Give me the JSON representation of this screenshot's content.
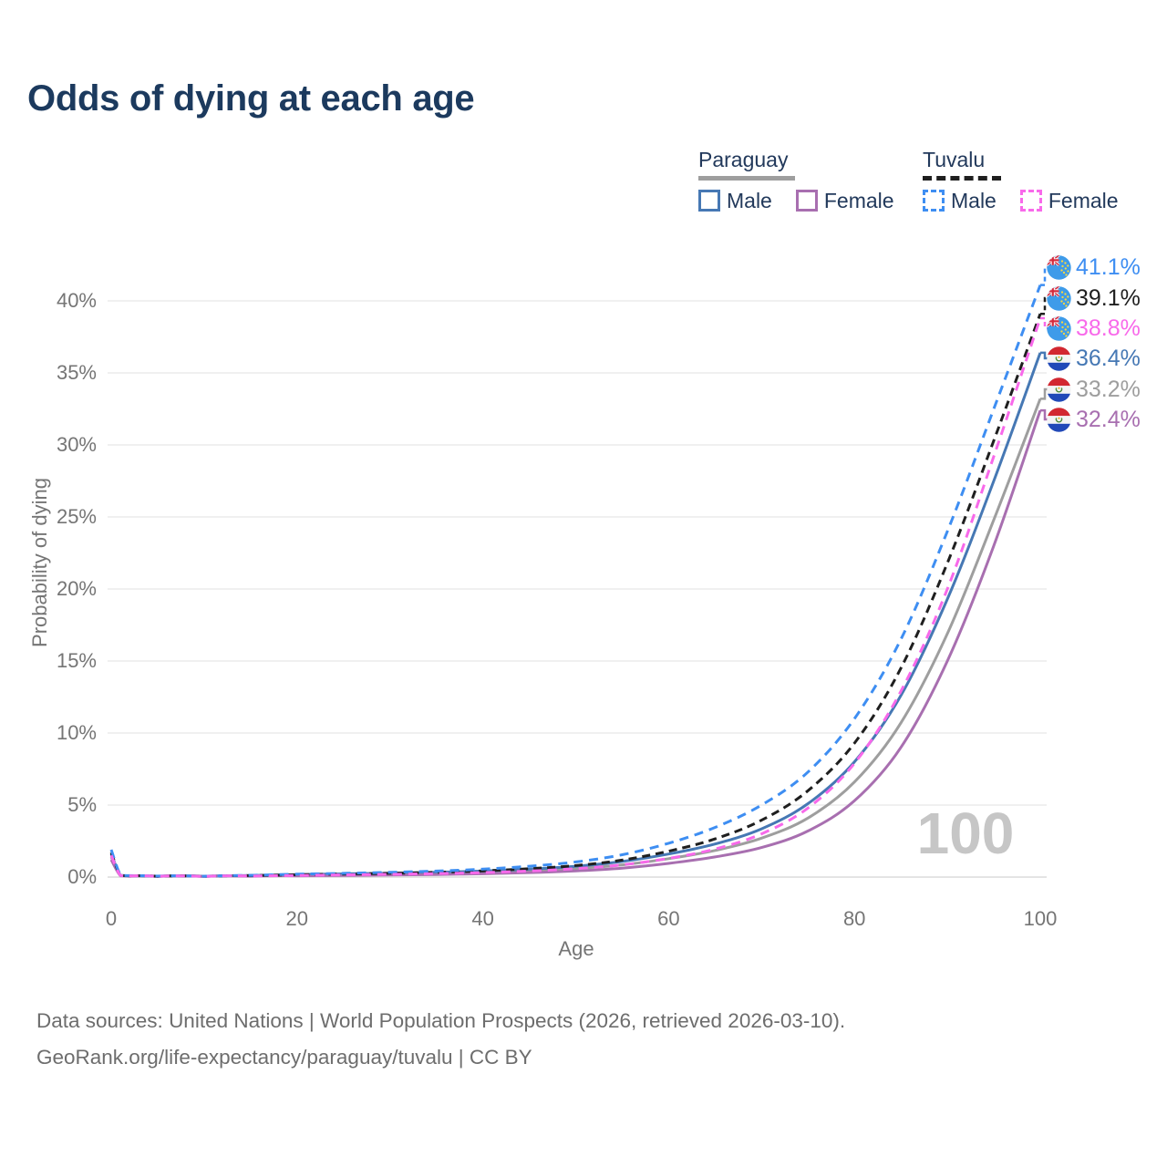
{
  "title": "Odds of dying at each age",
  "legend": {
    "groups": [
      {
        "label": "Paraguay",
        "underline_color": "#9E9E9E",
        "underline_style": "solid",
        "items": [
          {
            "label": "Male",
            "color": "#4678B4",
            "dashed": false
          },
          {
            "label": "Female",
            "color": "#A86FB0",
            "dashed": false
          }
        ]
      },
      {
        "label": "Tuvalu",
        "underline_color": "#1F1F1F",
        "underline_style": "dashed",
        "items": [
          {
            "label": "Male",
            "color": "#3E8EF2",
            "dashed": true
          },
          {
            "label": "Female",
            "color": "#F869EA",
            "dashed": true
          }
        ]
      }
    ]
  },
  "axes": {
    "x": {
      "label": "Age",
      "ticks": [
        "0",
        "20",
        "40",
        "60",
        "80",
        "100"
      ],
      "tick_values": [
        0,
        20,
        40,
        60,
        80,
        100
      ],
      "range": [
        0,
        100
      ]
    },
    "y": {
      "label": "Probability of dying",
      "ticks": [
        "0%",
        "5%",
        "10%",
        "15%",
        "20%",
        "25%",
        "30%",
        "35%",
        "40%"
      ],
      "tick_values": [
        0,
        5,
        10,
        15,
        20,
        25,
        30,
        35,
        40
      ],
      "range": [
        0,
        40
      ]
    }
  },
  "watermark": "100",
  "end_labels": [
    {
      "value": "41.1%",
      "series": "tuvalu_male",
      "flag": "tuvalu",
      "color": "#3E8EF2"
    },
    {
      "value": "39.1%",
      "series": "tuvalu_both",
      "flag": "tuvalu",
      "color": "#1F1F1F"
    },
    {
      "value": "38.8%",
      "series": "tuvalu_female",
      "flag": "tuvalu",
      "color": "#F869EA"
    },
    {
      "value": "36.4%",
      "series": "paraguay_male",
      "flag": "paraguay",
      "color": "#4678B4"
    },
    {
      "value": "33.2%",
      "series": "paraguay_both",
      "flag": "paraguay",
      "color": "#9E9E9E"
    },
    {
      "value": "32.4%",
      "series": "paraguay_female",
      "flag": "paraguay",
      "color": "#A86FB0"
    }
  ],
  "footer": {
    "line1": "Data sources: United Nations | World Population Prospects (2026, retrieved 2026-03-10).",
    "line2": "GeoRank.org/life-expectancy/paraguay/tuvalu | CC BY"
  },
  "chart_data": {
    "type": "line",
    "title": "Odds of dying at each age",
    "xlabel": "Age",
    "ylabel": "Probability of dying",
    "xlim": [
      0,
      100
    ],
    "ylim": [
      0,
      40
    ],
    "grid": "horizontal",
    "legend_position": "top-right",
    "x": [
      0,
      1,
      2,
      5,
      10,
      15,
      20,
      25,
      30,
      35,
      40,
      45,
      50,
      55,
      60,
      65,
      70,
      75,
      80,
      85,
      90,
      95,
      100
    ],
    "series": [
      {
        "id": "paraguay_both",
        "name": "Paraguay (both sexes)",
        "color": "#9E9E9E",
        "dashed": false,
        "end_label": "33.2%",
        "values": [
          1.4,
          0.1,
          0.07,
          0.05,
          0.05,
          0.09,
          0.13,
          0.17,
          0.21,
          0.26,
          0.33,
          0.44,
          0.6,
          0.85,
          1.28,
          1.85,
          2.7,
          4.1,
          6.6,
          10.7,
          16.9,
          24.8,
          33.2
        ]
      },
      {
        "id": "paraguay_male",
        "name": "Paraguay Male",
        "color": "#4678B4",
        "dashed": false,
        "end_label": "36.4%",
        "values": [
          1.6,
          0.12,
          0.08,
          0.06,
          0.06,
          0.11,
          0.17,
          0.22,
          0.27,
          0.33,
          0.42,
          0.55,
          0.75,
          1.08,
          1.6,
          2.3,
          3.35,
          5.1,
          8.0,
          12.6,
          19.3,
          27.5,
          36.4
        ]
      },
      {
        "id": "paraguay_female",
        "name": "Paraguay Female",
        "color": "#A86FB0",
        "dashed": false,
        "end_label": "32.4%",
        "values": [
          1.2,
          0.09,
          0.06,
          0.04,
          0.04,
          0.06,
          0.09,
          0.11,
          0.14,
          0.18,
          0.23,
          0.31,
          0.43,
          0.62,
          0.95,
          1.4,
          2.05,
          3.2,
          5.3,
          9.0,
          15.0,
          23.0,
          32.4
        ]
      },
      {
        "id": "tuvalu_both",
        "name": "Tuvalu (both sexes)",
        "color": "#1F1F1F",
        "dashed": true,
        "end_label": "39.1%",
        "values": [
          1.7,
          0.13,
          0.09,
          0.06,
          0.05,
          0.1,
          0.16,
          0.21,
          0.26,
          0.33,
          0.43,
          0.58,
          0.8,
          1.18,
          1.8,
          2.65,
          3.95,
          6.0,
          9.3,
          14.5,
          21.8,
          30.3,
          39.1
        ]
      },
      {
        "id": "tuvalu_male",
        "name": "Tuvalu Male",
        "color": "#3E8EF2",
        "dashed": true,
        "end_label": "41.1%",
        "values": [
          1.9,
          0.15,
          0.1,
          0.07,
          0.06,
          0.12,
          0.2,
          0.26,
          0.33,
          0.42,
          0.55,
          0.75,
          1.05,
          1.55,
          2.35,
          3.45,
          5.0,
          7.3,
          11.0,
          16.5,
          24.0,
          32.5,
          41.1
        ]
      },
      {
        "id": "tuvalu_female",
        "name": "Tuvalu Female",
        "color": "#F869EA",
        "dashed": true,
        "end_label": "38.8%",
        "values": [
          1.5,
          0.11,
          0.08,
          0.05,
          0.04,
          0.07,
          0.11,
          0.15,
          0.19,
          0.24,
          0.31,
          0.42,
          0.58,
          0.85,
          1.3,
          1.95,
          3.0,
          4.8,
          7.9,
          12.9,
          20.0,
          29.2,
          38.8
        ]
      }
    ]
  }
}
